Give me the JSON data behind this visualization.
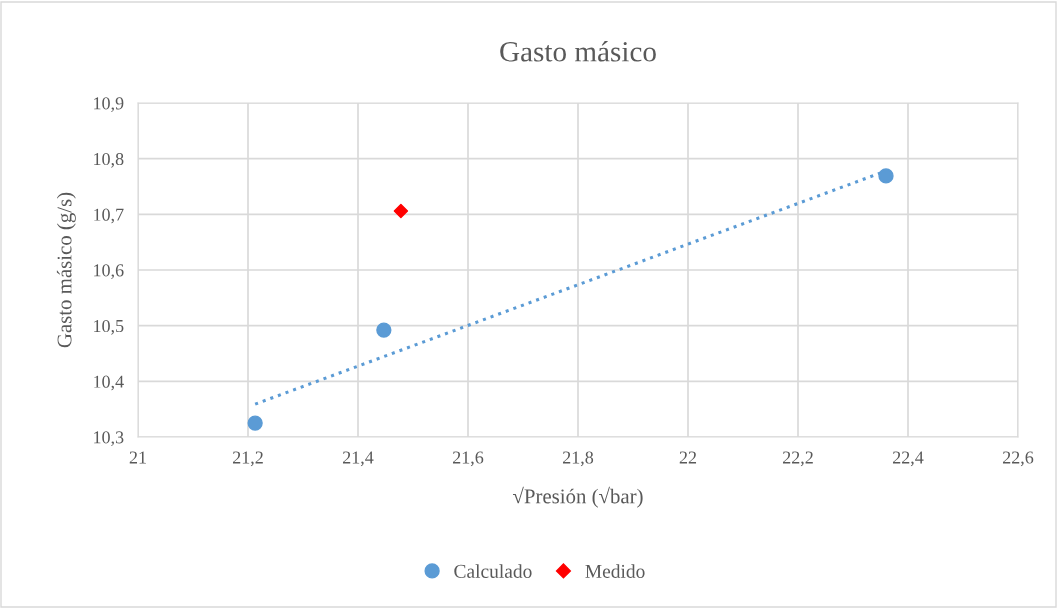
{
  "chart_data": {
    "type": "scatter",
    "title": "Gasto másico",
    "xlabel": "√Presión (√bar)",
    "ylabel": "Gasto másico (g/s)",
    "series": [
      {
        "name": "Calculado",
        "color": "#5b9bd5",
        "marker": "circle",
        "x": [
          21.213,
          21.447,
          22.36
        ],
        "values": [
          10.325,
          10.492,
          10.769
        ]
      },
      {
        "name": "Medido",
        "color": "#ff0000",
        "marker": "diamond",
        "x": [
          21.478
        ],
        "values": [
          10.706
        ]
      },
      {
        "type": "line",
        "color": "#5b9bd5",
        "line_style": "dotted",
        "marker": "none",
        "x": [
          21.213,
          22.36
        ],
        "values": [
          10.359,
          10.778
        ]
      }
    ],
    "xlim": [
      21,
      22.6
    ],
    "xticks": [
      21,
      {
        "value": 21.2,
        "label": "21,2"
      },
      {
        "value": 21.4,
        "label": "21,4"
      },
      {
        "value": 21.6,
        "label": "21,6"
      },
      {
        "value": 21.8,
        "label": "21,8"
      },
      22,
      {
        "value": 22.2,
        "label": "22,2"
      },
      {
        "value": 22.4,
        "label": "22,4"
      },
      {
        "value": 22.6,
        "label": "22,6"
      }
    ],
    "ylim": [
      10.3,
      10.9
    ],
    "yticks": [
      {
        "value": 10.3,
        "label": "10,3"
      },
      {
        "value": 10.4,
        "label": "10,4"
      },
      {
        "value": 10.5,
        "label": "10,5"
      },
      {
        "value": 10.6,
        "label": "10,6"
      },
      {
        "value": 10.7,
        "label": "10,7"
      },
      {
        "value": 10.8,
        "label": "10,8"
      },
      {
        "value": 10.9,
        "label": "10,9"
      }
    ],
    "grid": true,
    "legend": "bottom"
  }
}
